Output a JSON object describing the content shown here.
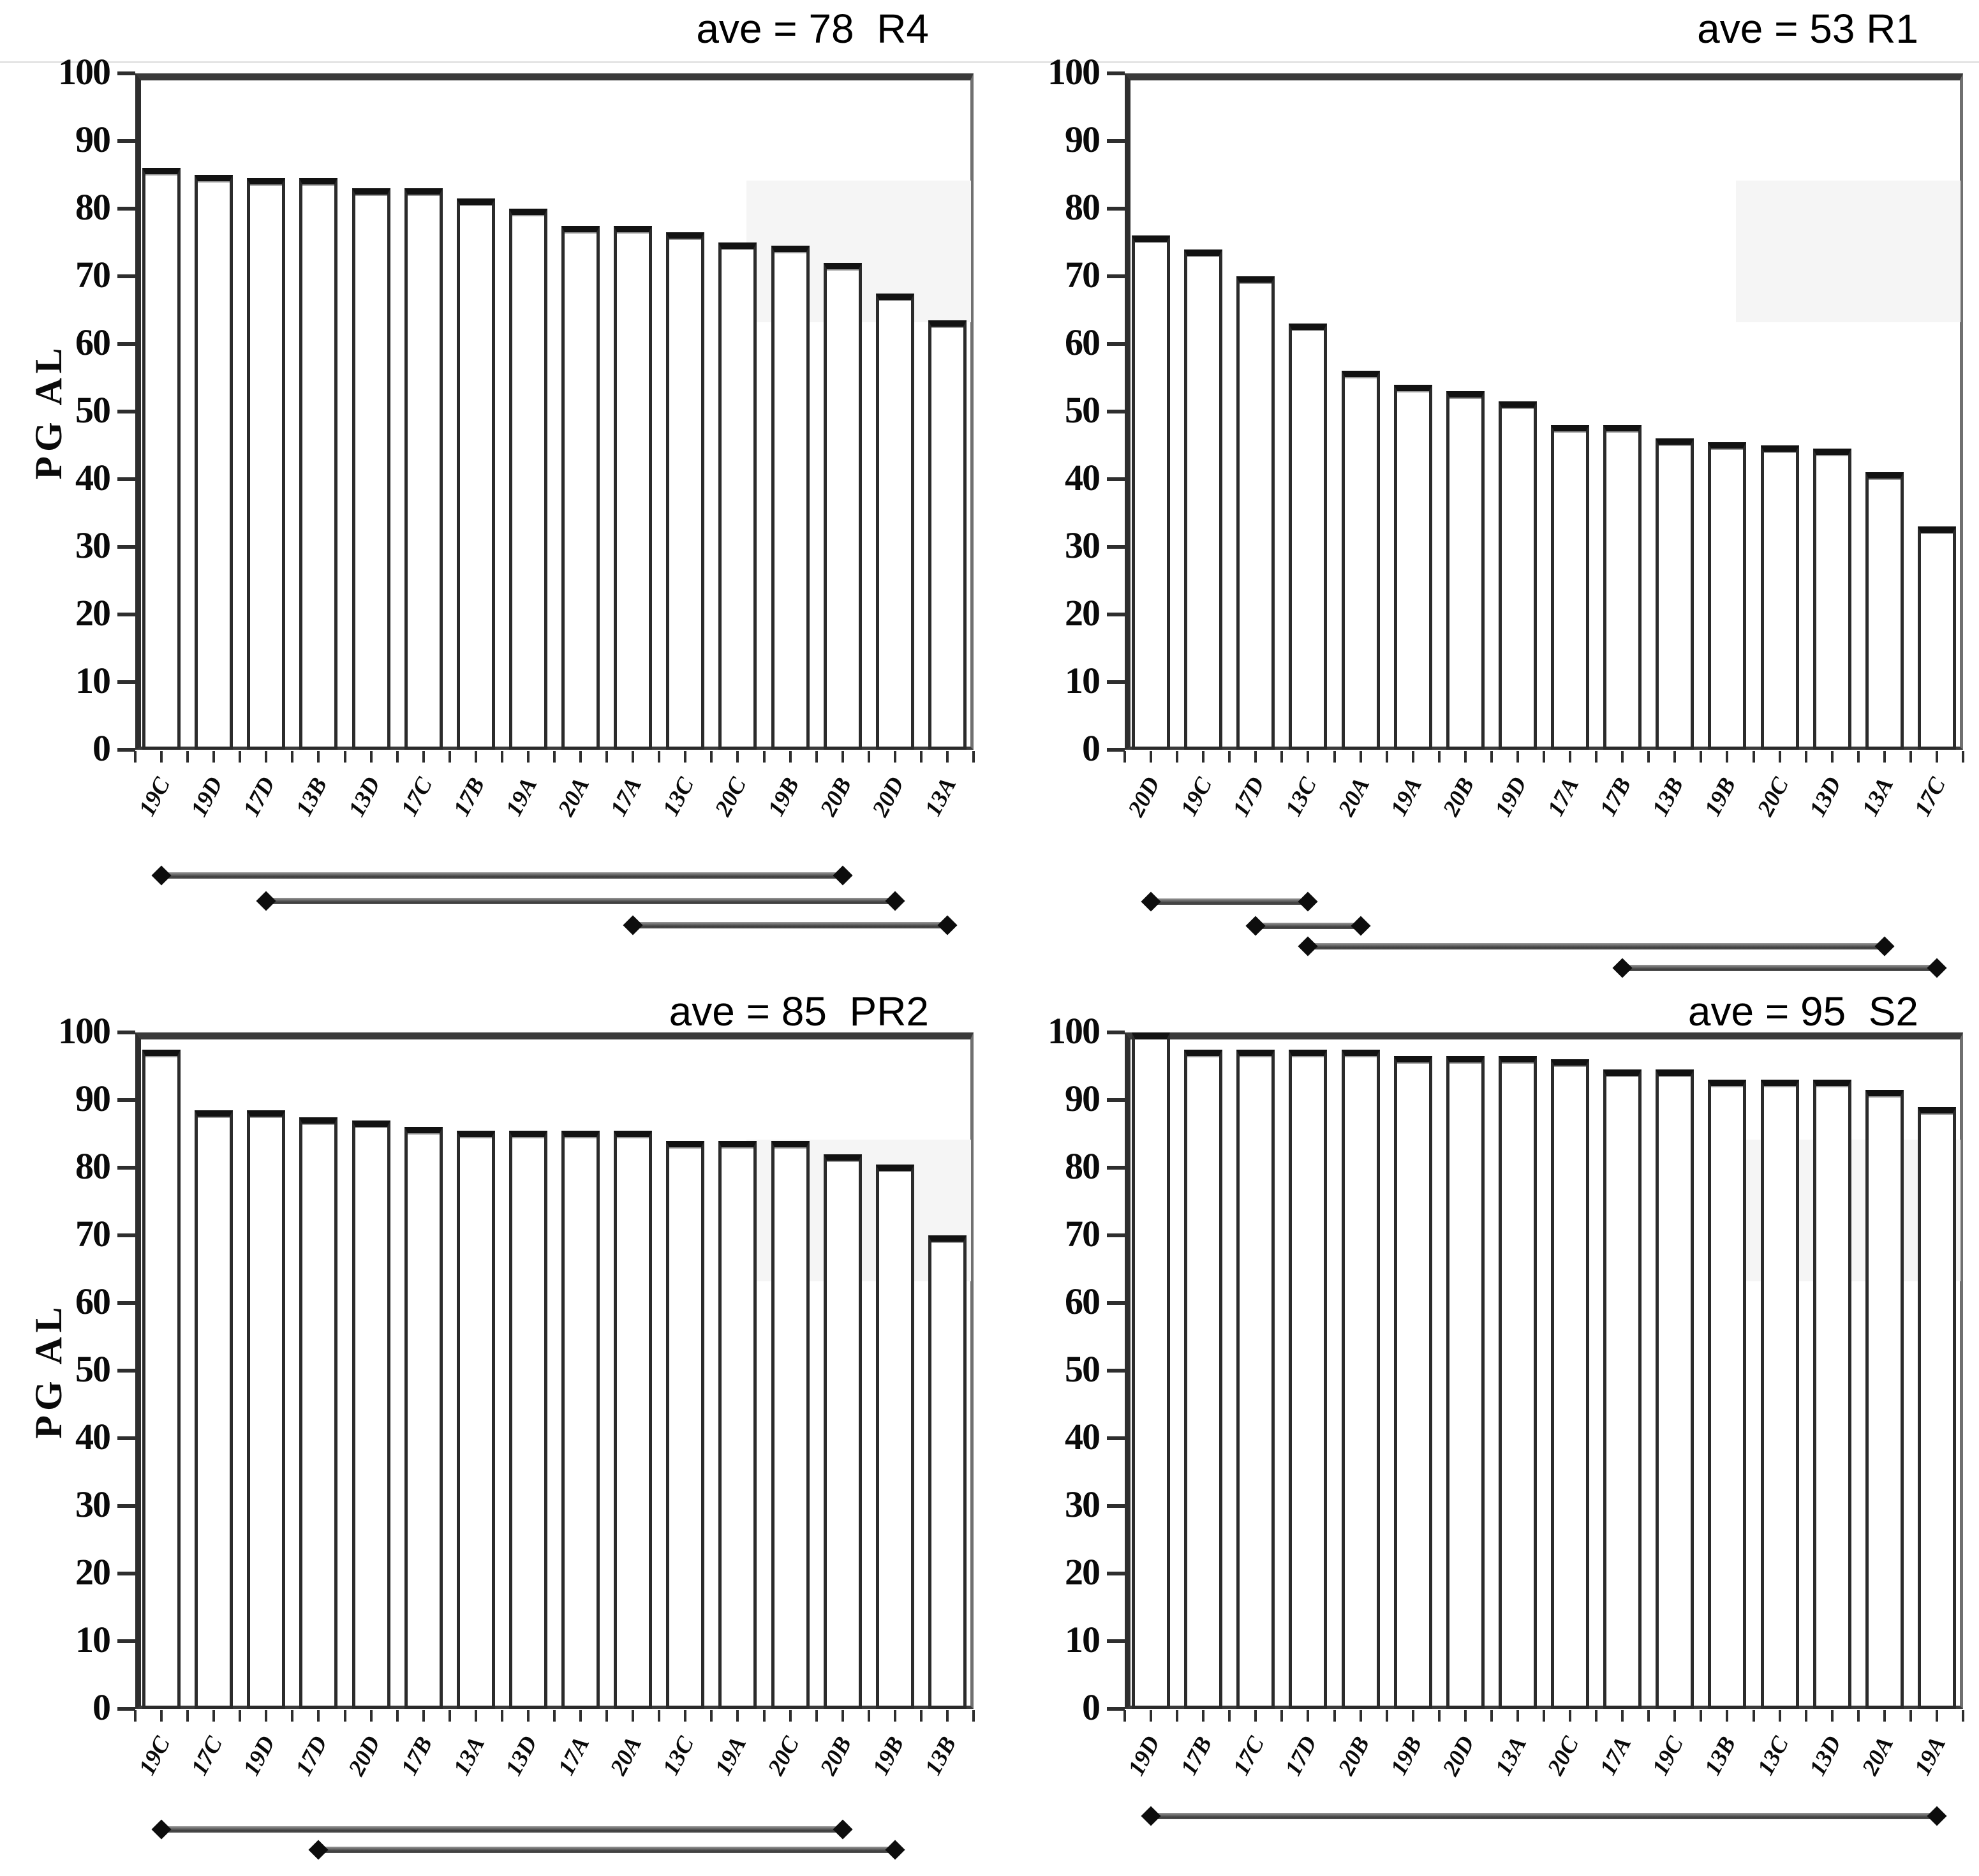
{
  "figure": {
    "ylabel": "PG AL",
    "y_ticks": [
      "0",
      "10",
      "20",
      "30",
      "40",
      "50",
      "60",
      "70",
      "80",
      "90",
      "100"
    ]
  },
  "chart_data": [
    {
      "type": "bar",
      "panel": "top-left",
      "title": "ave = 78  R4",
      "ave": 78,
      "code": "R4",
      "xlabel": "",
      "ylabel": "PG AL",
      "ylim": [
        0,
        100
      ],
      "y_tick_step": 10,
      "grid": false,
      "legend": false,
      "categories": [
        "19C",
        "19D",
        "17D",
        "13B",
        "13D",
        "17C",
        "17B",
        "19A",
        "20A",
        "17A",
        "13C",
        "20C",
        "19B",
        "20B",
        "20D",
        "13A"
      ],
      "values": [
        86,
        85,
        84.5,
        84.5,
        83,
        83,
        81.5,
        80,
        77.5,
        77.5,
        76.5,
        75,
        74.5,
        72,
        67.5,
        63.5
      ],
      "significance_lines": [
        {
          "from_bar": 1,
          "to_bar": 14,
          "from": "19C",
          "to": "20B"
        },
        {
          "from_bar": 3,
          "to_bar": 15,
          "from": "17D",
          "to": "20D"
        },
        {
          "from_bar": 10,
          "to_bar": 16,
          "from": "17A",
          "to": "13A"
        }
      ]
    },
    {
      "type": "bar",
      "panel": "top-right",
      "title": "ave = 53 R1",
      "ave": 53,
      "code": "R1",
      "xlabel": "",
      "ylabel": "",
      "ylim": [
        0,
        100
      ],
      "y_tick_step": 10,
      "grid": false,
      "legend": false,
      "categories": [
        "20D",
        "19C",
        "17D",
        "13C",
        "20A",
        "19A",
        "20B",
        "19D",
        "17A",
        "17B",
        "13B",
        "19B",
        "20C",
        "13D",
        "13A",
        "17C"
      ],
      "values": [
        76,
        74,
        70,
        63,
        56,
        54,
        53,
        51.5,
        48,
        48,
        46,
        45.5,
        45,
        44.5,
        41,
        33
      ],
      "significance_lines": [
        {
          "from_bar": 1,
          "to_bar": 4,
          "from": "20D",
          "to": "13C"
        },
        {
          "from_bar": 3,
          "to_bar": 5,
          "from": "17D",
          "to": "20A"
        },
        {
          "from_bar": 4,
          "to_bar": 15,
          "from": "13C",
          "to": "13A"
        },
        {
          "from_bar": 10,
          "to_bar": 16,
          "from": "17B",
          "to": "17C"
        }
      ]
    },
    {
      "type": "bar",
      "panel": "bottom-left",
      "title": "ave = 85  PR2",
      "ave": 85,
      "code": "PR2",
      "xlabel": "",
      "ylabel": "PG AL",
      "ylim": [
        0,
        100
      ],
      "y_tick_step": 10,
      "grid": false,
      "legend": false,
      "categories": [
        "19C",
        "17C",
        "19D",
        "17D",
        "20D",
        "17B",
        "13A",
        "13D",
        "17A",
        "20A",
        "13C",
        "19A",
        "20C",
        "20B",
        "19B",
        "13B"
      ],
      "values": [
        97.5,
        88.5,
        88.5,
        87.5,
        87,
        86,
        85.5,
        85.5,
        85.5,
        85.5,
        84,
        84,
        84,
        82,
        80.5,
        70
      ],
      "significance_lines": [
        {
          "from_bar": 1,
          "to_bar": 14,
          "from": "19C",
          "to": "20B"
        },
        {
          "from_bar": 4,
          "to_bar": 15,
          "from": "17D",
          "to": "19B"
        }
      ]
    },
    {
      "type": "bar",
      "panel": "bottom-right",
      "title": "ave = 95  S2",
      "ave": 95,
      "code": "S2",
      "xlabel": "",
      "ylabel": "",
      "ylim": [
        0,
        100
      ],
      "y_tick_step": 10,
      "grid": false,
      "legend": false,
      "categories": [
        "19D",
        "17B",
        "17C",
        "17D",
        "20B",
        "19B",
        "20D",
        "13A",
        "20C",
        "17A",
        "19C",
        "13B",
        "13C",
        "13D",
        "20A",
        "19A"
      ],
      "values": [
        100,
        97.5,
        97.5,
        97.5,
        97.5,
        96.5,
        96.5,
        96.5,
        96,
        94.5,
        94.5,
        93,
        93,
        93,
        91.5,
        89
      ],
      "significance_lines": [
        {
          "from_bar": 1,
          "to_bar": 16,
          "from": "19D",
          "to": "19A"
        }
      ]
    }
  ]
}
